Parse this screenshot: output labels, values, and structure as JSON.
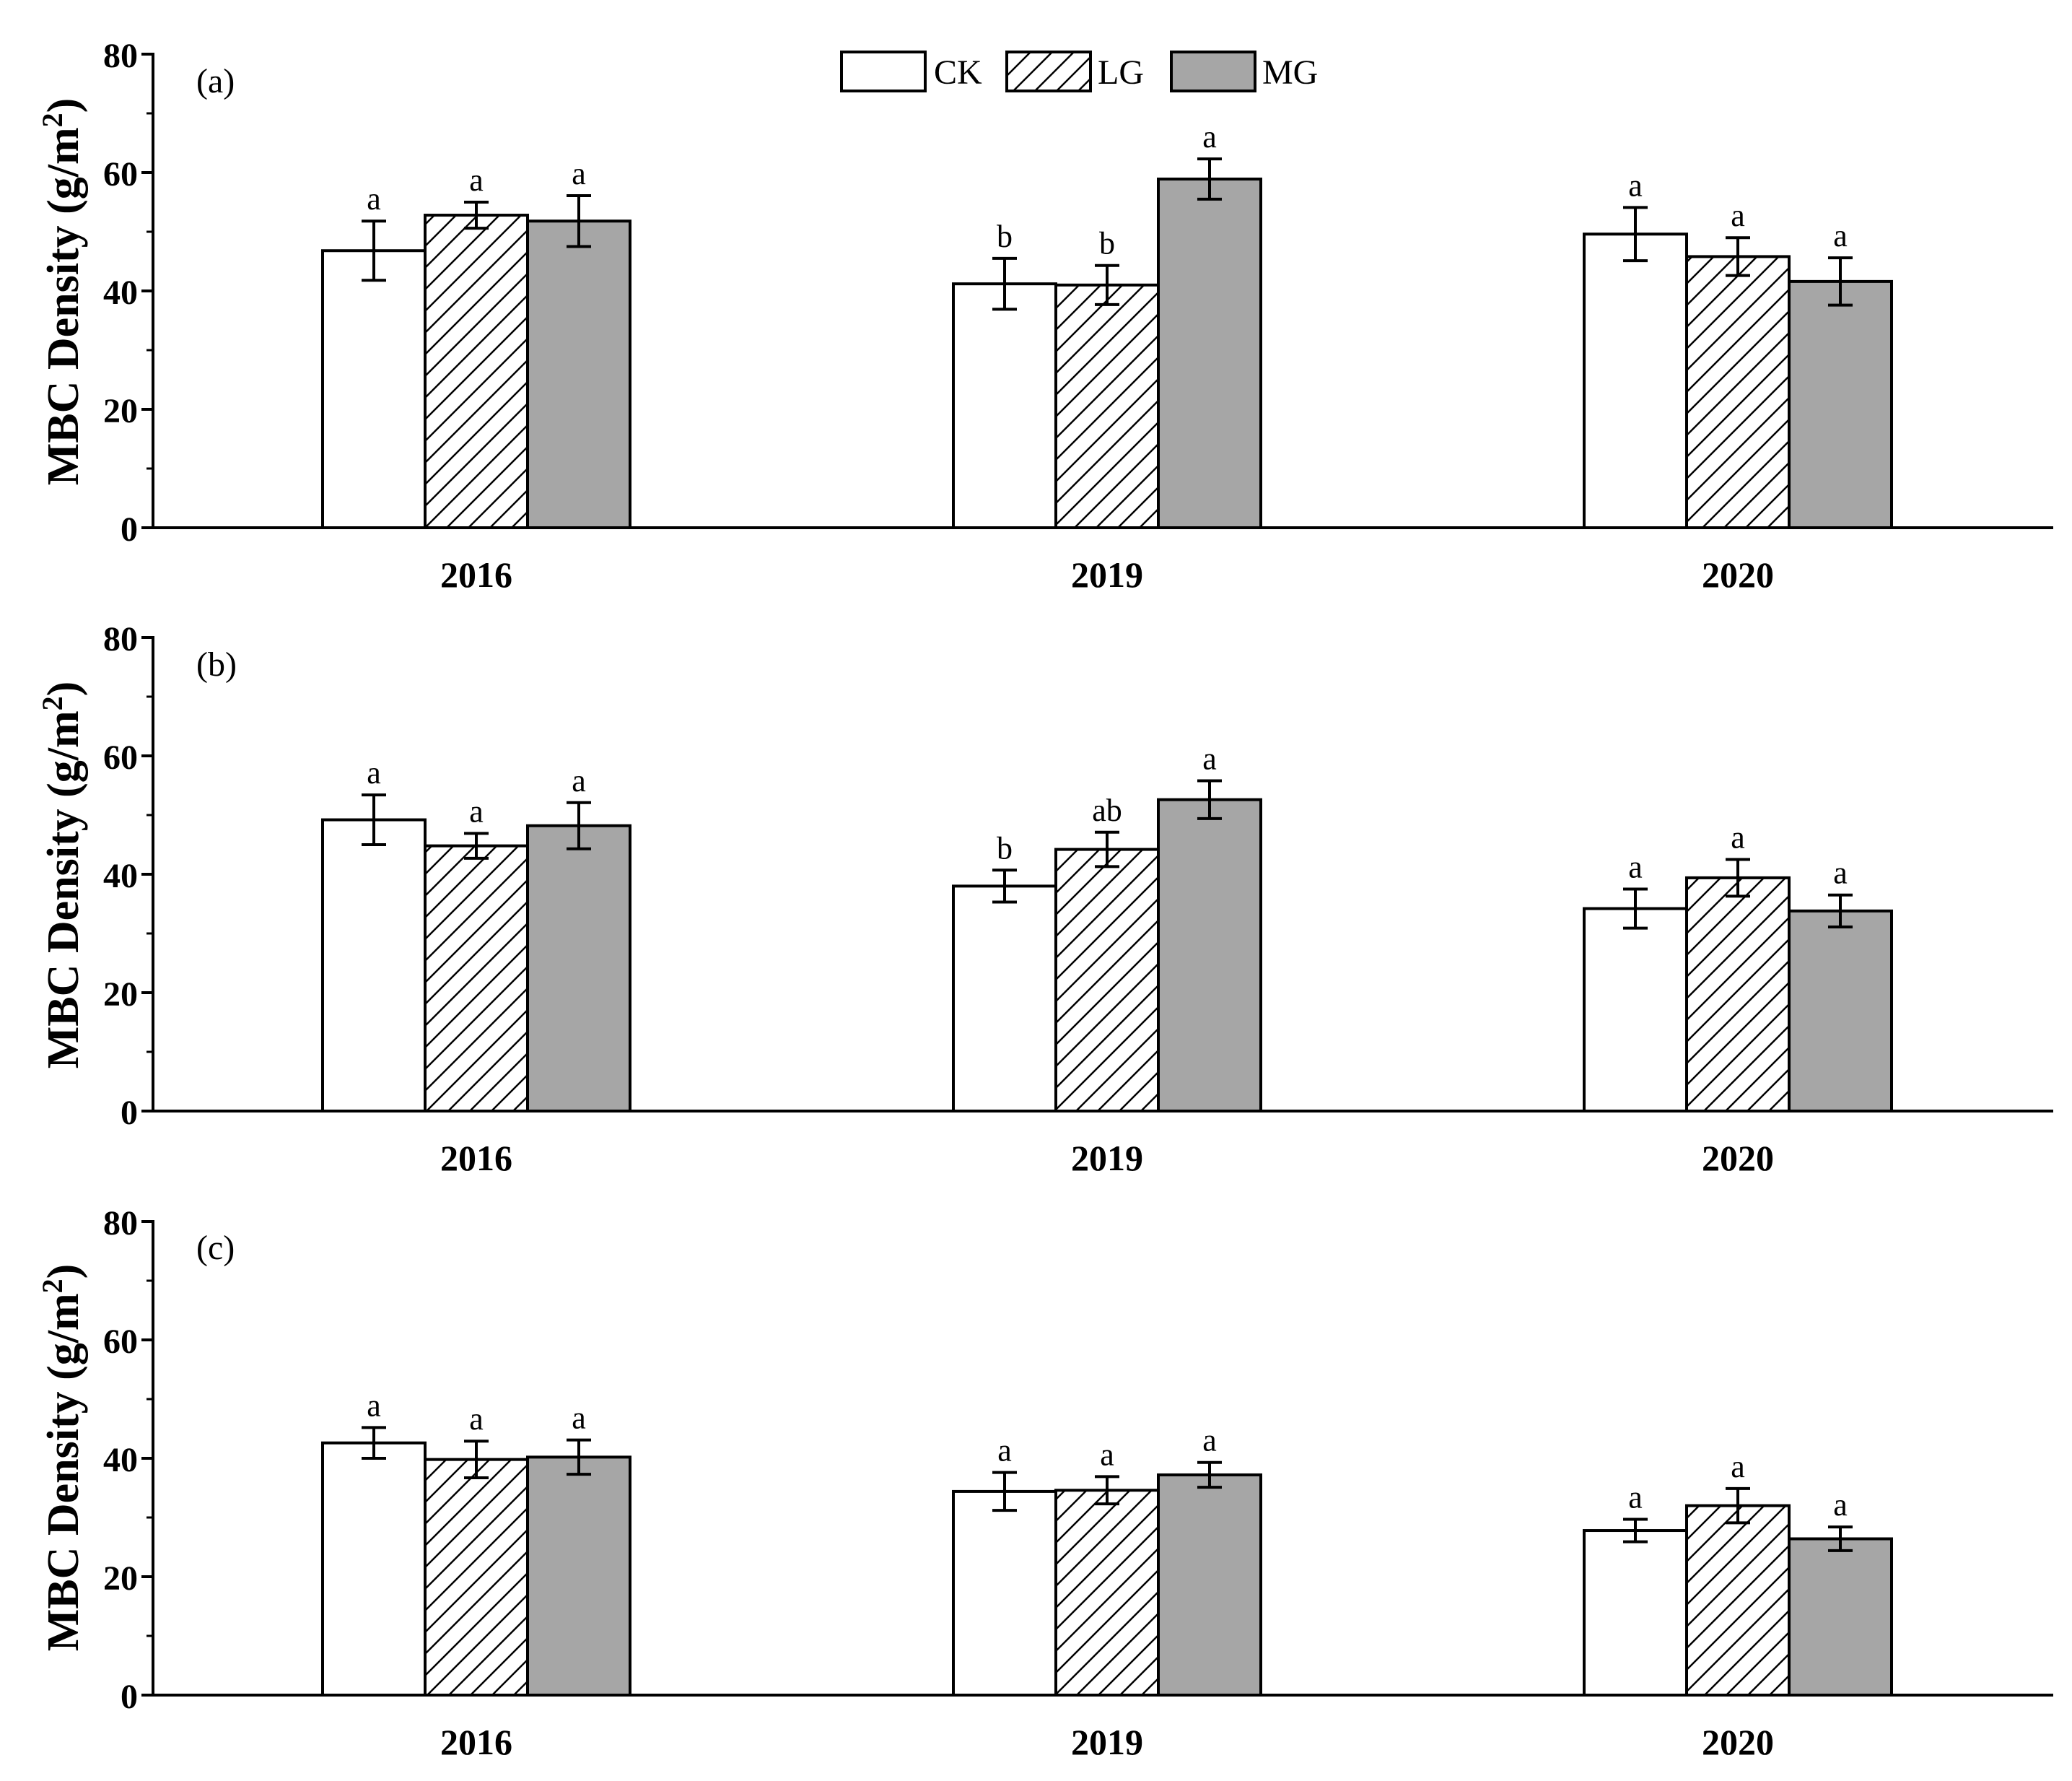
{
  "legend": {
    "items": [
      {
        "name": "CK",
        "label": "CK",
        "fill": "#ffffff",
        "pattern": "none"
      },
      {
        "name": "LG",
        "label": "LG",
        "fill": "#ffffff",
        "pattern": "hatch"
      },
      {
        "name": "MG",
        "label": "MG",
        "fill": "#a6a6a6",
        "pattern": "none"
      }
    ]
  },
  "colors": {
    "axis": "#000000",
    "mg_fill": "#a6a6a6",
    "bar_stroke": "#000000"
  },
  "chart_data": [
    {
      "type": "bar",
      "panel_label": "(a)",
      "ylabel_main": "MBC Density (g/m",
      "ylabel_sup": "2",
      "ylabel_close": ")",
      "ylim": [
        0,
        80
      ],
      "yticks": [
        "0",
        "20",
        "40",
        "60",
        "80"
      ],
      "categories": [
        "2016",
        "2019",
        "2020"
      ],
      "series": [
        {
          "name": "CK",
          "values": [
            46.8,
            41.2,
            49.6
          ],
          "errors": [
            5.0,
            4.3,
            4.5
          ],
          "labels": [
            "a",
            "b",
            "a"
          ]
        },
        {
          "name": "LG",
          "values": [
            52.8,
            41.0,
            45.8
          ],
          "errors": [
            2.2,
            3.3,
            3.2
          ],
          "labels": [
            "a",
            "b",
            "a"
          ]
        },
        {
          "name": "MG",
          "values": [
            51.8,
            58.9,
            41.6
          ],
          "errors": [
            4.3,
            3.4,
            4.0
          ],
          "labels": [
            "a",
            "a",
            "a"
          ]
        }
      ]
    },
    {
      "type": "bar",
      "panel_label": "(b)",
      "ylabel_main": "MBC Density (g/m",
      "ylabel_sup": "2",
      "ylabel_close": ")",
      "ylim": [
        0,
        80
      ],
      "yticks": [
        "0",
        "20",
        "40",
        "60",
        "80"
      ],
      "categories": [
        "2016",
        "2019",
        "2020"
      ],
      "series": [
        {
          "name": "CK",
          "values": [
            49.2,
            38.0,
            34.2
          ],
          "errors": [
            4.2,
            2.7,
            3.3
          ],
          "labels": [
            "a",
            "b",
            "a"
          ]
        },
        {
          "name": "LG",
          "values": [
            44.8,
            44.2,
            39.4
          ],
          "errors": [
            2.1,
            2.9,
            3.1
          ],
          "labels": [
            "a",
            "ab",
            "a"
          ]
        },
        {
          "name": "MG",
          "values": [
            48.2,
            52.6,
            33.8
          ],
          "errors": [
            3.9,
            3.2,
            2.7
          ],
          "labels": [
            "a",
            "a",
            "a"
          ]
        }
      ]
    },
    {
      "type": "bar",
      "panel_label": "(c)",
      "ylabel_main": "MBC Density (g/m",
      "ylabel_sup": "2",
      "ylabel_close": ")",
      "ylim": [
        0,
        80
      ],
      "yticks": [
        "0",
        "20",
        "40",
        "60",
        "80"
      ],
      "categories": [
        "2016",
        "2019",
        "2020"
      ],
      "series": [
        {
          "name": "CK",
          "values": [
            42.6,
            34.4,
            27.8
          ],
          "errors": [
            2.6,
            3.2,
            1.9
          ],
          "labels": [
            "a",
            "a",
            "a"
          ]
        },
        {
          "name": "LG",
          "values": [
            39.8,
            34.6,
            32.0
          ],
          "errors": [
            3.1,
            2.3,
            2.9
          ],
          "labels": [
            "a",
            "a",
            "a"
          ]
        },
        {
          "name": "MG",
          "values": [
            40.2,
            37.2,
            26.4
          ],
          "errors": [
            2.9,
            2.1,
            2.0
          ],
          "labels": [
            "a",
            "a",
            "a"
          ]
        }
      ]
    }
  ]
}
